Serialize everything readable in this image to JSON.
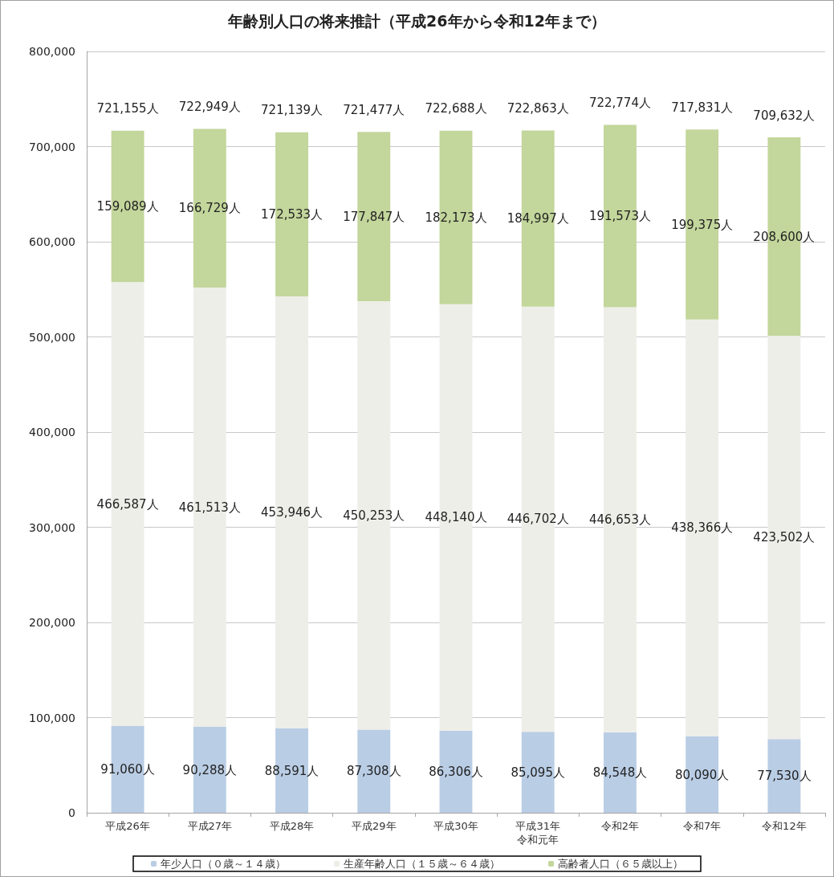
{
  "chart_data": {
    "type": "bar",
    "title": "年齢別人口の将来推計（平成26年から令和12年まで）",
    "categories": [
      "平成26年",
      "平成27年",
      "平成28年",
      "平成29年",
      "平成30年",
      "平成31年令和元年",
      "令和2年",
      "令和7年",
      "令和12年"
    ],
    "series": [
      {
        "name": "年少人口（０歳～１４歳）",
        "color": "#b9cde5",
        "values": [
          91060,
          90288,
          88591,
          87308,
          86306,
          85095,
          84548,
          80090,
          77530
        ],
        "value_labels": [
          "91,060人",
          "90,288人",
          "88,591人",
          "87,308人",
          "86,306人",
          "85,095人",
          "84,548人",
          "80,090人",
          "77,530人"
        ]
      },
      {
        "name": "生産年齢人口（１５歳～６４歳）",
        "color": "#eeeee8",
        "values": [
          466587,
          461513,
          453946,
          450253,
          448140,
          446702,
          446653,
          438366,
          423502
        ],
        "value_labels": [
          "466,587人",
          "461,513人",
          "453,946人",
          "450,253人",
          "448,140人",
          "446,702人",
          "446,653人",
          "438,366人",
          "423,502人"
        ]
      },
      {
        "name": "高齢者人口（６５歳以上）",
        "color": "#c3d69b",
        "values": [
          159089,
          166729,
          172533,
          177847,
          182173,
          184997,
          191573,
          199375,
          208600
        ],
        "value_labels": [
          "159,089人",
          "166,729人",
          "172,533人",
          "177,847人",
          "182,173人",
          "184,997人",
          "191,573人",
          "199,375人",
          "208,600人"
        ]
      }
    ],
    "annotations": [
      "721,155人",
      "722,949人",
      "721,139人",
      "721,477人",
      "722,688人",
      "722,863人",
      "722,774人",
      "717,831人",
      "709,632人"
    ],
    "stacked": true,
    "ylim": [
      0,
      800000
    ],
    "yticks": [
      {
        "value": 0,
        "label": "0"
      },
      {
        "value": 100000,
        "label": "100,000"
      },
      {
        "value": 200000,
        "label": "200,000"
      },
      {
        "value": 300000,
        "label": "300,000"
      },
      {
        "value": 400000,
        "label": "400,000"
      },
      {
        "value": 500000,
        "label": "500,000"
      },
      {
        "value": 600000,
        "label": "600,000"
      },
      {
        "value": 700000,
        "label": "700,000"
      },
      {
        "value": 800000,
        "label": "800,000"
      }
    ],
    "grid": "y",
    "legend": "bottom"
  }
}
